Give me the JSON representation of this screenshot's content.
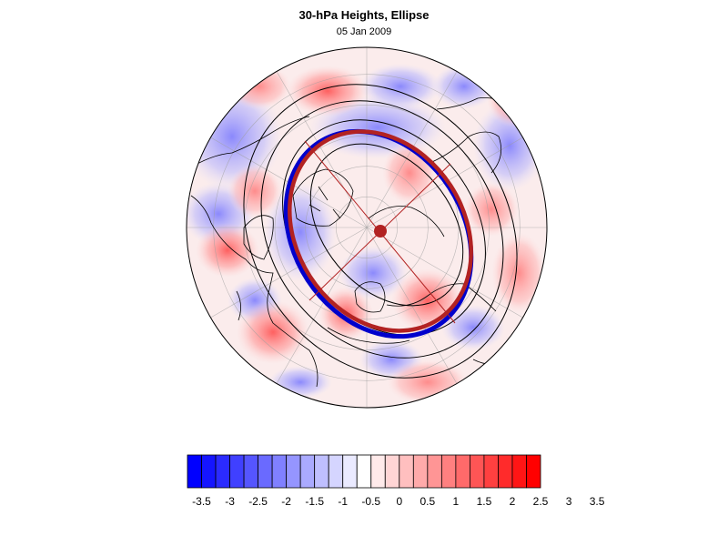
{
  "figure": {
    "title": "30-hPa Heights, Ellipse",
    "subtitle": "05 Jan 2009"
  },
  "colors": {
    "ellipse_fit": "#b22222",
    "ellipse_center": "#b22222",
    "contour": "#000000",
    "negative_contour_highlight": "#0000cc",
    "coastline": "#000000",
    "gridline": "#a0a0a0"
  },
  "colorbar": {
    "colors": [
      "#0000ff",
      "#1515ff",
      "#2b2bff",
      "#4040ff",
      "#5555ff",
      "#6a6aff",
      "#8080ff",
      "#9595ff",
      "#aaaaff",
      "#bfbfff",
      "#d5d5ff",
      "#eaeaff",
      "#ffffff",
      "#ffeaea",
      "#ffd5d5",
      "#ffbfbf",
      "#ffaaaa",
      "#ff9595",
      "#ff8080",
      "#ff6a6a",
      "#ff5555",
      "#ff4040",
      "#ff2b2b",
      "#ff1515",
      "#ff0000"
    ],
    "tick_labels": [
      "-3.5",
      "-3",
      "-2.5",
      "-2",
      "-1.5",
      "-1",
      "-0.5",
      "0",
      "0.5",
      "1",
      "1.5",
      "2",
      "2.5",
      "3",
      "3.5"
    ]
  }
}
